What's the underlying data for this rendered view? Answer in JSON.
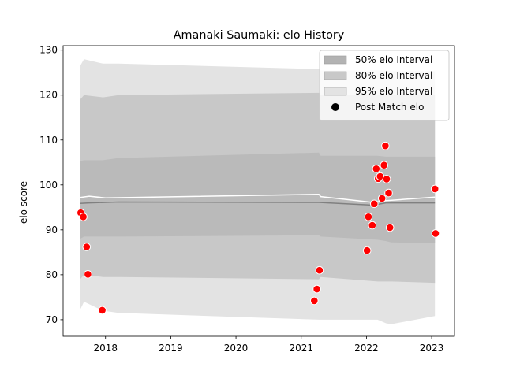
{
  "chart_data": {
    "type": "line",
    "title": "Amanaki Saumaki: elo History",
    "xlabel": "",
    "ylabel": "elo score",
    "xlim": [
      2017.35,
      2023.35
    ],
    "ylim": [
      66.3,
      131.0
    ],
    "xticks": [
      2018,
      2019,
      2020,
      2021,
      2022,
      2023
    ],
    "yticks": [
      70,
      80,
      90,
      100,
      110,
      120,
      130
    ],
    "grid": false,
    "legend_position": "top-right",
    "legend": [
      {
        "label": "50% elo Interval",
        "color": "#b3b3b3"
      },
      {
        "label": "80% elo Interval",
        "color": "#c8c8c8"
      },
      {
        "label": "95% elo Interval",
        "color": "#e3e3e3"
      },
      {
        "label": "Post Match elo",
        "color": "#000000"
      }
    ],
    "colors": {
      "band95": "#e3e3e3",
      "band80": "#c8c8c8",
      "band50": "#bababa",
      "mean_line": "#808080",
      "current_line": "#ffffff",
      "points": "#ff0000"
    },
    "band_x": [
      2017.61,
      2017.67,
      2017.96,
      2018.2,
      2021.27,
      2021.3,
      2022.17,
      2022.3,
      2022.38,
      2023.05
    ],
    "band95_upper": [
      126.5,
      128.0,
      127.0,
      127.0,
      125.8,
      125.5,
      125.5,
      125.5,
      125.3,
      125.3
    ],
    "band95_lower": [
      72.2,
      74.0,
      72.0,
      71.5,
      70.0,
      70.0,
      70.0,
      69.2,
      69.0,
      70.8
    ],
    "band80_upper": [
      119.0,
      120.0,
      119.5,
      120.0,
      120.5,
      120.0,
      120.0,
      120.0,
      120.0,
      120.0
    ],
    "band80_lower": [
      79.0,
      80.0,
      79.5,
      79.5,
      79.0,
      79.5,
      78.5,
      78.5,
      78.5,
      78.2
    ],
    "band50_upper": [
      105.3,
      105.5,
      105.5,
      106.0,
      107.2,
      106.5,
      106.5,
      106.3,
      106.3,
      106.3
    ],
    "band50_lower": [
      88.0,
      88.5,
      88.5,
      88.5,
      88.8,
      88.5,
      87.8,
      87.5,
      87.2,
      87.0
    ],
    "mean_line": {
      "x": [
        2017.61,
        2017.75,
        2018.2,
        2021.27,
        2022.1,
        2022.3,
        2023.05
      ],
      "y": [
        95.9,
        96.0,
        96.2,
        96.1,
        95.5,
        96.0,
        96.0
      ]
    },
    "current_line": {
      "x": [
        2017.61,
        2017.75,
        2018.0,
        2021.27,
        2021.3,
        2022.1,
        2022.2,
        2022.3,
        2023.05
      ],
      "y": [
        97.2,
        97.5,
        97.1,
        97.9,
        97.4,
        96.1,
        96.3,
        96.5,
        97.3
      ]
    },
    "series": [
      {
        "name": "Post Match elo",
        "points": [
          {
            "x": 2017.62,
            "y": 93.8
          },
          {
            "x": 2017.66,
            "y": 92.9
          },
          {
            "x": 2017.71,
            "y": 86.2
          },
          {
            "x": 2017.73,
            "y": 80.1
          },
          {
            "x": 2017.95,
            "y": 72.1
          },
          {
            "x": 2021.2,
            "y": 74.2
          },
          {
            "x": 2021.24,
            "y": 76.8
          },
          {
            "x": 2021.28,
            "y": 81.0
          },
          {
            "x": 2022.01,
            "y": 85.4
          },
          {
            "x": 2022.03,
            "y": 92.9
          },
          {
            "x": 2022.09,
            "y": 91.0
          },
          {
            "x": 2022.12,
            "y": 95.8
          },
          {
            "x": 2022.15,
            "y": 103.6
          },
          {
            "x": 2022.18,
            "y": 101.4
          },
          {
            "x": 2022.21,
            "y": 101.9
          },
          {
            "x": 2022.24,
            "y": 97.0
          },
          {
            "x": 2022.27,
            "y": 104.4
          },
          {
            "x": 2022.29,
            "y": 108.7
          },
          {
            "x": 2022.31,
            "y": 101.3
          },
          {
            "x": 2022.34,
            "y": 98.2
          },
          {
            "x": 2022.36,
            "y": 90.5
          },
          {
            "x": 2023.05,
            "y": 99.1
          },
          {
            "x": 2023.06,
            "y": 89.2
          }
        ]
      }
    ]
  }
}
